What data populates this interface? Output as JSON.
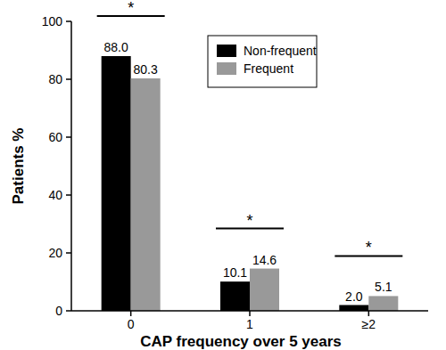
{
  "chart_data": {
    "type": "bar",
    "x_label": "CAP frequency over 5 years",
    "y_label": "Patients %",
    "categories": [
      "0",
      "1",
      "≥2"
    ],
    "series": [
      {
        "name": "Non-frequent",
        "color": "#000000",
        "values": [
          88.0,
          10.1,
          2.0
        ],
        "value_labels": [
          "88.0",
          "10.1",
          "2.0"
        ]
      },
      {
        "name": "Frequent",
        "color": "#999999",
        "values": [
          80.3,
          14.6,
          5.1
        ],
        "value_labels": [
          "80.3",
          "14.6",
          "5.1"
        ]
      }
    ],
    "annotations": [
      "*",
      "*",
      "*"
    ],
    "ylim": [
      0,
      100
    ],
    "yticks": [
      0,
      20,
      40,
      60,
      80,
      100
    ],
    "legend": "upper right",
    "data_labels": true,
    "grid": false
  }
}
